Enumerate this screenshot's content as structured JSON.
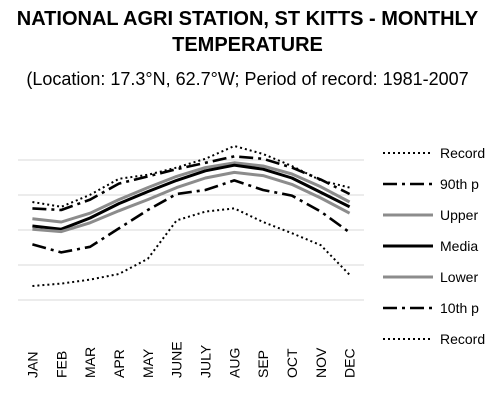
{
  "chart_data": {
    "type": "line",
    "title_lines": [
      "NATIONAL AGRI STATION, ST KITTS - MONTHLY",
      "TEMPERATURE"
    ],
    "subtitle": "(Location: 17.3°N, 62.7°W; Period of record: 1981-2007",
    "categories": [
      "JAN",
      "FEB",
      "MAR",
      "APR",
      "MAY",
      "JUNE",
      "JULY",
      "AUG",
      "SEP",
      "OCT",
      "NOV",
      "DEC"
    ],
    "grid": true,
    "gridline_count": 5,
    "legend_position": "right",
    "series": [
      {
        "name": "Record",
        "style": "dotted",
        "color": "#000000",
        "width": 2,
        "values": [
          6.0,
          5.4,
          6.9,
          8.9,
          9.4,
          10.3,
          11.4,
          13.0,
          12.0,
          10.5,
          8.7,
          7.8
        ]
      },
      {
        "name": "90th p",
        "style": "dashdot",
        "color": "#000000",
        "width": 2.6,
        "values": [
          5.2,
          5.0,
          6.3,
          8.3,
          9.2,
          10.1,
          10.9,
          11.7,
          11.4,
          10.3,
          8.8,
          7.0
        ]
      },
      {
        "name": "Upper",
        "style": "solid",
        "color": "#8c8c8c",
        "width": 3,
        "values": [
          3.9,
          3.5,
          4.6,
          6.3,
          7.8,
          9.2,
          10.3,
          10.9,
          10.5,
          9.5,
          7.9,
          6.0
        ]
      },
      {
        "name": "Media",
        "style": "solid",
        "color": "#000000",
        "width": 3,
        "values": [
          3.0,
          2.6,
          4.0,
          5.8,
          7.3,
          8.7,
          9.9,
          10.6,
          10.1,
          9.0,
          7.2,
          5.4
        ]
      },
      {
        "name": "Lower",
        "style": "solid",
        "color": "#8c8c8c",
        "width": 3,
        "values": [
          2.6,
          2.3,
          3.4,
          4.9,
          6.3,
          7.8,
          9.0,
          9.7,
          9.3,
          8.2,
          6.5,
          4.6
        ]
      },
      {
        "name": "10th p",
        "style": "dashdot",
        "color": "#000000",
        "width": 2.6,
        "values": [
          0.7,
          -0.3,
          0.4,
          2.7,
          5.0,
          7.0,
          7.5,
          8.7,
          7.5,
          6.8,
          4.8,
          2.2
        ]
      },
      {
        "name": "Record",
        "style": "dotted",
        "color": "#000000",
        "width": 2,
        "values": [
          -4.5,
          -4.2,
          -3.7,
          -3.0,
          -1.1,
          3.7,
          4.8,
          5.2,
          3.5,
          2.1,
          0.6,
          -3.1
        ]
      }
    ],
    "ylim": [
      -10,
      15
    ]
  }
}
